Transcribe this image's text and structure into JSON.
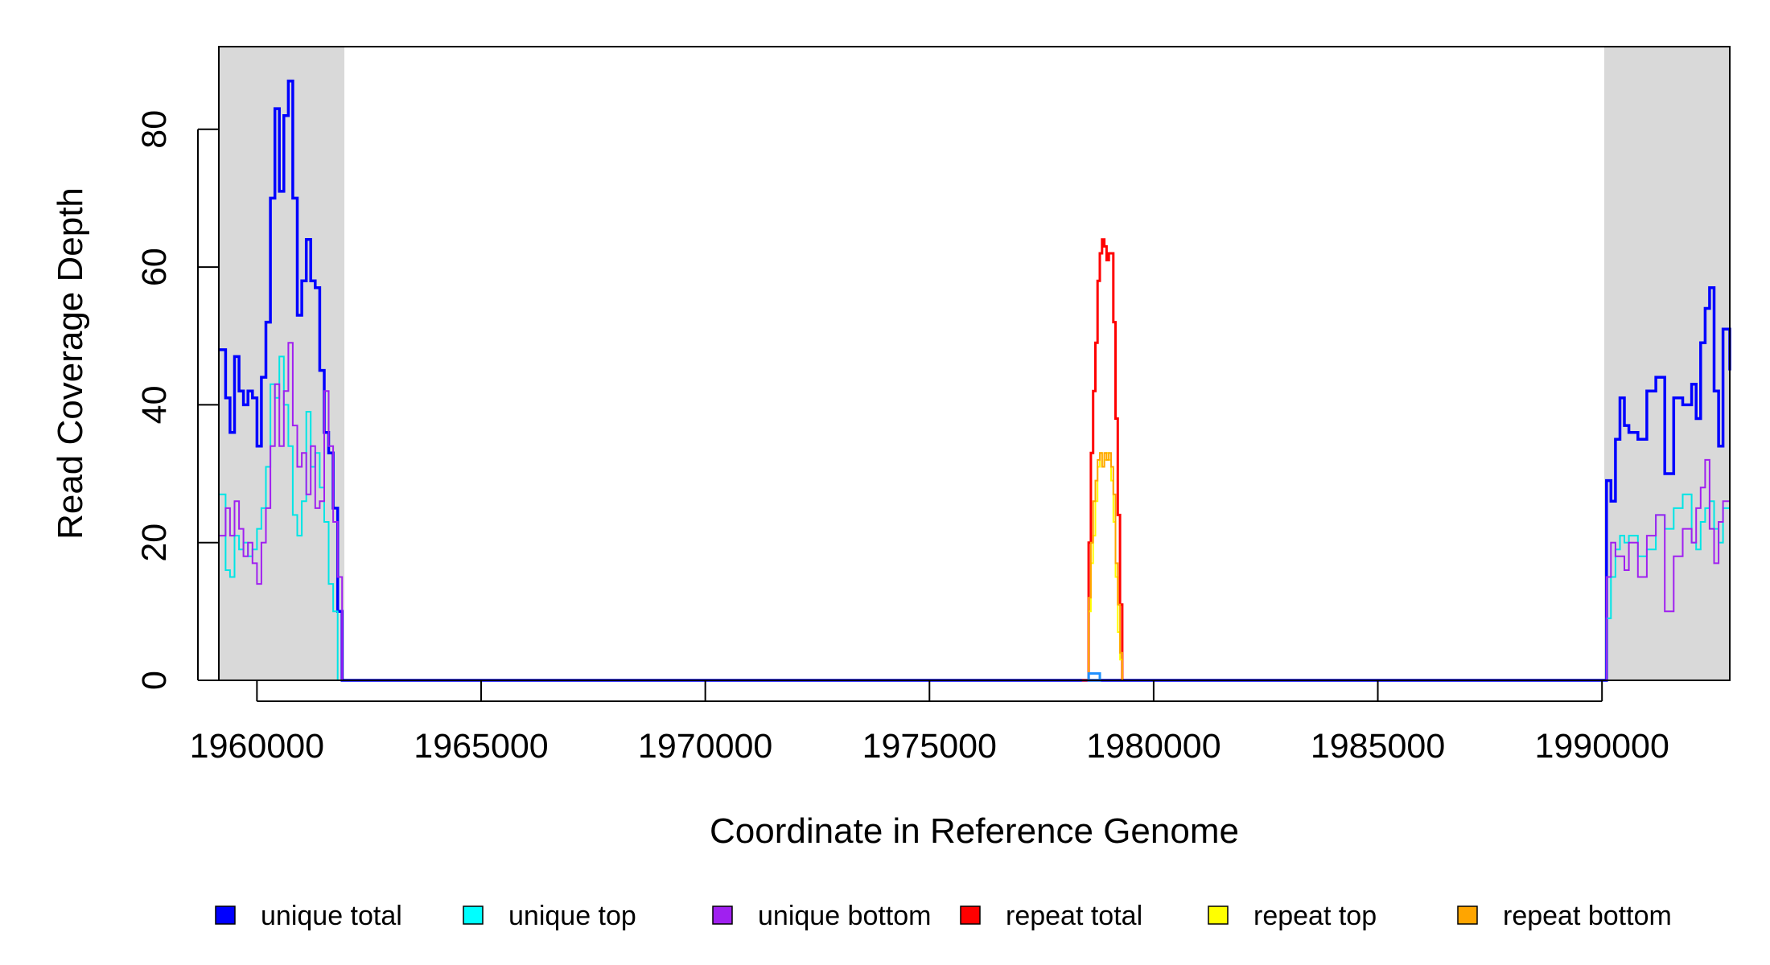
{
  "chart_data": {
    "type": "line",
    "title": "",
    "xlabel": "Coordinate in Reference Genome",
    "ylabel": "Read Coverage Depth",
    "xlim": [
      1959150,
      1992850
    ],
    "ylim": [
      0,
      92
    ],
    "x_ticks": [
      1960000,
      1965000,
      1970000,
      1975000,
      1980000,
      1985000,
      1990000
    ],
    "x_tick_labels": [
      "1960000",
      "1965000",
      "1970000",
      "1975000",
      "1980000",
      "1985000",
      "1990000"
    ],
    "y_ticks": [
      0,
      20,
      40,
      60,
      80
    ],
    "y_tick_labels": [
      "0",
      "20",
      "40",
      "60",
      "80"
    ],
    "grid": false,
    "legend_position": "bottom",
    "shaded_regions": [
      {
        "from": 1959150,
        "to": 1961950,
        "color": "#d9d9d9"
      },
      {
        "from": 1990050,
        "to": 1992850,
        "color": "#d9d9d9"
      }
    ],
    "series": [
      {
        "name": "unique total",
        "color": "#0000ff",
        "x": [
          1959150,
          1959300,
          1959400,
          1959500,
          1959600,
          1959700,
          1959800,
          1959900,
          1960000,
          1960100,
          1960200,
          1960300,
          1960400,
          1960500,
          1960600,
          1960700,
          1960800,
          1960900,
          1961000,
          1961100,
          1961200,
          1961300,
          1961400,
          1961500,
          1961600,
          1961700,
          1961800,
          1961900,
          1961950,
          1962000,
          1978500,
          1978900,
          1990000,
          1990100,
          1990200,
          1990300,
          1990400,
          1990500,
          1990600,
          1990800,
          1991000,
          1991200,
          1991400,
          1991600,
          1991800,
          1992000,
          1992100,
          1992200,
          1992300,
          1992400,
          1992500,
          1992600,
          1992700,
          1992850
        ],
        "values": [
          48,
          41,
          36,
          47,
          42,
          40,
          42,
          41,
          34,
          44,
          52,
          70,
          83,
          71,
          82,
          87,
          70,
          53,
          58,
          64,
          58,
          57,
          45,
          36,
          33,
          25,
          10,
          0,
          0,
          0,
          0,
          0,
          0,
          29,
          26,
          35,
          41,
          37,
          36,
          35,
          42,
          44,
          30,
          41,
          40,
          43,
          38,
          49,
          54,
          57,
          42,
          34,
          51,
          45
        ]
      },
      {
        "name": "unique top",
        "color": "#00e5e5",
        "x": [
          1959150,
          1959300,
          1959400,
          1959500,
          1959600,
          1959700,
          1959800,
          1959900,
          1960000,
          1960100,
          1960200,
          1960300,
          1960400,
          1960500,
          1960600,
          1960700,
          1960800,
          1960900,
          1961000,
          1961100,
          1961200,
          1961300,
          1961400,
          1961500,
          1961600,
          1961700,
          1961800,
          1961900,
          1961950,
          1962000,
          1978500,
          1978900,
          1990000,
          1990100,
          1990200,
          1990300,
          1990400,
          1990500,
          1990600,
          1990800,
          1991000,
          1991200,
          1991400,
          1991600,
          1991800,
          1992000,
          1992100,
          1992200,
          1992300,
          1992400,
          1992500,
          1992600,
          1992700,
          1992850
        ],
        "values": [
          27,
          16,
          15,
          21,
          19,
          20,
          18,
          19,
          22,
          25,
          31,
          43,
          41,
          47,
          40,
          34,
          24,
          21,
          26,
          39,
          31,
          33,
          28,
          23,
          14,
          10,
          0,
          0,
          0,
          0,
          0,
          0,
          0,
          9,
          15,
          19,
          21,
          20,
          21,
          18,
          19,
          24,
          22,
          25,
          27,
          20,
          19,
          23,
          25,
          26,
          22,
          20,
          25,
          23
        ]
      },
      {
        "name": "unique bottom",
        "color": "#a020f0",
        "x": [
          1959150,
          1959300,
          1959400,
          1959500,
          1959600,
          1959700,
          1959800,
          1959900,
          1960000,
          1960100,
          1960200,
          1960300,
          1960400,
          1960500,
          1960600,
          1960700,
          1960800,
          1960900,
          1961000,
          1961100,
          1961200,
          1961300,
          1961400,
          1961500,
          1961600,
          1961700,
          1961800,
          1961900,
          1961950,
          1962000,
          1978500,
          1978900,
          1990000,
          1990100,
          1990200,
          1990300,
          1990400,
          1990500,
          1990600,
          1990800,
          1991000,
          1991200,
          1991400,
          1991600,
          1991800,
          1992000,
          1992100,
          1992200,
          1992300,
          1992400,
          1992500,
          1992600,
          1992700,
          1992850
        ],
        "values": [
          21,
          25,
          21,
          26,
          22,
          18,
          20,
          17,
          14,
          20,
          25,
          34,
          43,
          34,
          42,
          49,
          37,
          31,
          33,
          27,
          34,
          25,
          26,
          42,
          34,
          23,
          15,
          0,
          0,
          0,
          0,
          0,
          0,
          15,
          20,
          18,
          18,
          16,
          20,
          15,
          21,
          24,
          10,
          18,
          22,
          20,
          25,
          28,
          32,
          22,
          17,
          23,
          26,
          19
        ]
      },
      {
        "name": "repeat total",
        "color": "#ff0000",
        "x": [
          1978400,
          1978550,
          1978600,
          1978650,
          1978700,
          1978750,
          1978800,
          1978850,
          1978900,
          1978950,
          1979000,
          1979050,
          1979100,
          1979150,
          1979200,
          1979250,
          1979300
        ],
        "values": [
          0,
          20,
          33,
          42,
          49,
          58,
          62,
          64,
          63,
          61,
          62,
          62,
          52,
          38,
          24,
          11,
          0
        ]
      },
      {
        "name": "repeat top",
        "color": "#ffff00",
        "x": [
          1978400,
          1978550,
          1978600,
          1978650,
          1978700,
          1978750,
          1978800,
          1978850,
          1978900,
          1978950,
          1979000,
          1979050,
          1979100,
          1979150,
          1979200,
          1979250,
          1979300
        ],
        "values": [
          0,
          10,
          17,
          21,
          26,
          31,
          33,
          31,
          32,
          33,
          32,
          29,
          23,
          15,
          7,
          3,
          0
        ]
      },
      {
        "name": "repeat bottom",
        "color": "#ffa500",
        "x": [
          1978400,
          1978550,
          1978600,
          1978650,
          1978700,
          1978750,
          1978800,
          1978850,
          1978900,
          1978950,
          1979000,
          1979050,
          1979100,
          1979150,
          1979200,
          1979250,
          1979300
        ],
        "values": [
          0,
          12,
          20,
          26,
          29,
          32,
          33,
          31,
          33,
          32,
          33,
          31,
          27,
          17,
          11,
          4,
          0
        ]
      }
    ],
    "legend": [
      {
        "label": "unique total",
        "color": "#0000ff"
      },
      {
        "label": "unique top",
        "color": "#00ffff"
      },
      {
        "label": "unique bottom",
        "color": "#a020f0"
      },
      {
        "label": "repeat total",
        "color": "#ff0000"
      },
      {
        "label": "repeat top",
        "color": "#ffff00"
      },
      {
        "label": "repeat bottom",
        "color": "#ffa500"
      }
    ]
  }
}
